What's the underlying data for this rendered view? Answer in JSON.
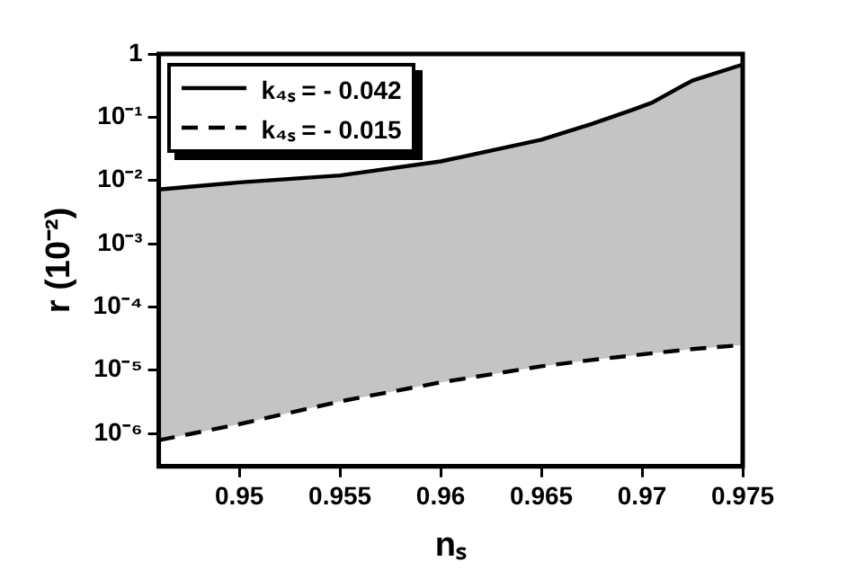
{
  "chart_data": {
    "type": "line",
    "xlabel": "nₛ",
    "ylabel": "r (10⁻²)",
    "log": "y",
    "legend": "top left",
    "grid": false,
    "marker": "none",
    "xlim": [
      0.946,
      0.975
    ],
    "xticks": [
      0.95,
      0.955,
      0.96,
      0.965,
      0.97,
      0.975
    ],
    "ylim": [
      3e-07,
      1
    ],
    "yticks": [
      {
        "value": 1,
        "label": "1"
      },
      {
        "value": 0.1,
        "label": "10⁻¹"
      },
      {
        "value": 0.01,
        "label": "10⁻²"
      },
      {
        "value": 0.001,
        "label": "10⁻³"
      },
      {
        "value": 0.0001,
        "label": "10⁻⁴"
      },
      {
        "value": 1e-05,
        "label": "10⁻⁵"
      },
      {
        "value": 1e-06,
        "label": "10⁻⁶"
      }
    ],
    "x": [
      0.946,
      0.95,
      0.955,
      0.96,
      0.965,
      0.9675,
      0.9695,
      0.9705,
      0.9725,
      0.975
    ],
    "series": [
      {
        "name": "k₄ₛ = - 0.042",
        "color": "#000000",
        "line_style": "solid",
        "values": [
          0.0072,
          0.0093,
          0.012,
          0.02,
          0.044,
          0.078,
          0.13,
          0.17,
          0.38,
          0.68
        ],
        "lower": [
          7.8e-07,
          1.4e-06,
          3.2e-06,
          6.4e-06,
          1.15e-05,
          1.45e-05,
          1.7e-05,
          1.85e-05,
          2.15e-05,
          2.5e-05
        ],
        "upper": [
          0.0072,
          0.0093,
          0.012,
          0.02,
          0.044,
          0.078,
          0.13,
          0.17,
          0.38,
          0.68
        ]
      },
      {
        "name": "k₄ₛ = - 0.015",
        "color": "#000000",
        "line_style": "dashed",
        "values": [
          7.8e-07,
          1.4e-06,
          3.2e-06,
          6.4e-06,
          1.15e-05,
          1.45e-05,
          1.7e-05,
          1.85e-05,
          2.15e-05,
          2.5e-05
        ]
      }
    ]
  }
}
